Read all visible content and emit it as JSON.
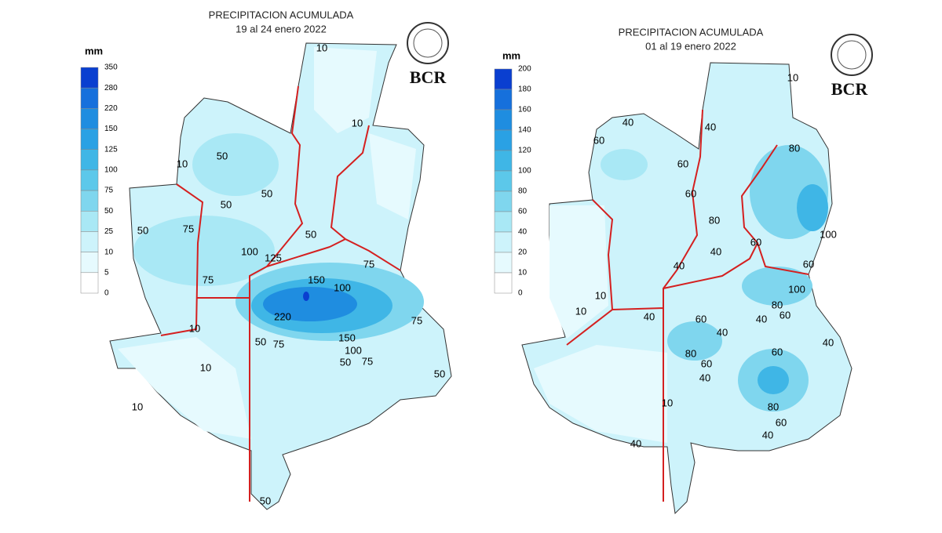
{
  "maps": [
    {
      "title": "PRECIPITACION ACUMULADA",
      "subtitle": "19 al 24 enero 2022",
      "logo": "BCR",
      "legend": {
        "unit": "mm",
        "levels": [
          350,
          280,
          220,
          150,
          125,
          100,
          75,
          50,
          25,
          10,
          5,
          0
        ],
        "colors": [
          "#0a3fd0",
          "#1670dc",
          "#1f8de0",
          "#2aa1e4",
          "#3fb6e6",
          "#5cc8ea",
          "#7fd6ee",
          "#a9e8f5",
          "#cdf3fb",
          "#e6fafe",
          "#ffffff"
        ]
      },
      "contour_labels": [
        "10",
        "10",
        "50",
        "50",
        "50",
        "10",
        "75",
        "50",
        "75",
        "100",
        "125",
        "150",
        "100",
        "220",
        "75",
        "50",
        "75",
        "10",
        "10",
        "10",
        "50",
        "50",
        "75",
        "50",
        "150",
        "100",
        "75",
        "50"
      ]
    },
    {
      "title": "PRECIPITACION ACUMULADA",
      "subtitle": "01 al 19 enero 2022",
      "logo": "BCR",
      "legend": {
        "unit": "mm",
        "levels": [
          200,
          180,
          160,
          140,
          120,
          100,
          80,
          60,
          40,
          20,
          10,
          0
        ],
        "colors": [
          "#0a3fd0",
          "#1670dc",
          "#1f8de0",
          "#2aa1e4",
          "#3fb6e6",
          "#5cc8ea",
          "#7fd6ee",
          "#a9e8f5",
          "#cdf3fb",
          "#e6fafe",
          "#ffffff"
        ]
      },
      "contour_labels": [
        "10",
        "40",
        "40",
        "60",
        "60",
        "60",
        "80",
        "80",
        "40",
        "60",
        "100",
        "60",
        "100",
        "80",
        "60",
        "40",
        "40",
        "60",
        "80",
        "60",
        "40",
        "60",
        "80",
        "60",
        "40",
        "40",
        "40",
        "10",
        "10",
        "10",
        "40",
        "40"
      ]
    }
  ]
}
